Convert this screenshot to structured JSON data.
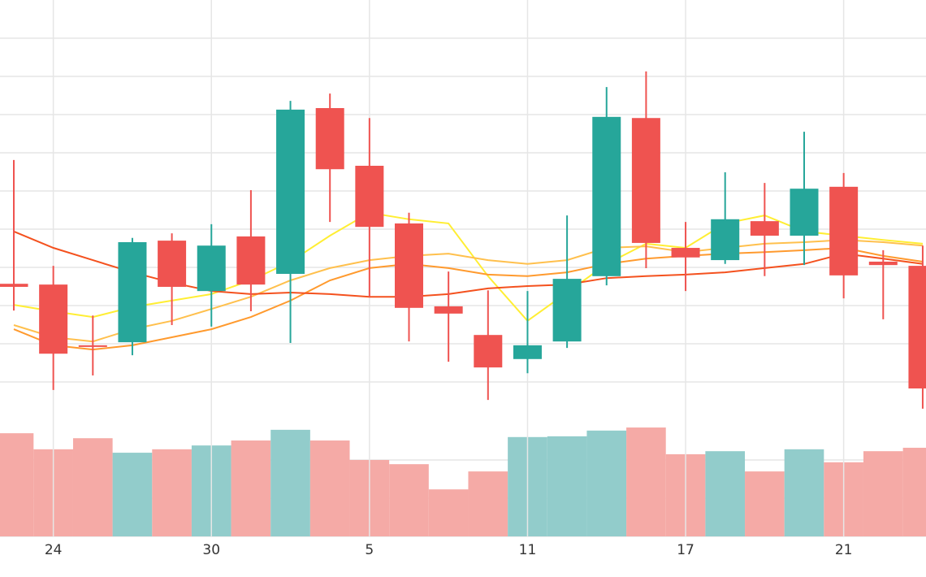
{
  "chart_data": {
    "type": "candlestick",
    "categories": [
      null,
      "24",
      null,
      null,
      null,
      "30",
      null,
      null,
      null,
      "5",
      null,
      null,
      null,
      "11",
      null,
      null,
      null,
      "17",
      null,
      null,
      null,
      "21",
      null,
      null
    ],
    "open": [
      35.7,
      35.5,
      19.6,
      20.4,
      47.0,
      33.8,
      48.1,
      38.3,
      81.7,
      66.6,
      51.5,
      29.8,
      22.3,
      16.0,
      20.6,
      37.7,
      79.1,
      45.1,
      41.9,
      52.1,
      48.3,
      61.1,
      41.5,
      40.4
    ],
    "high": [
      68.1,
      40.4,
      27.4,
      47.7,
      48.9,
      51.3,
      60.2,
      83.6,
      85.5,
      79.1,
      54.3,
      38.9,
      34.0,
      33.8,
      53.6,
      87.2,
      91.3,
      51.9,
      64.9,
      62.1,
      75.5,
      64.7,
      44.5,
      45.7
    ],
    "low": [
      28.7,
      7.9,
      11.7,
      17.0,
      24.9,
      24.5,
      28.5,
      20.2,
      51.9,
      32.3,
      20.6,
      15.3,
      5.3,
      12.3,
      18.9,
      35.3,
      39.8,
      33.8,
      40.9,
      37.7,
      40.6,
      31.9,
      26.4,
      3.0
    ],
    "close": [
      34.9,
      17.4,
      19.4,
      46.6,
      34.9,
      45.7,
      35.5,
      81.3,
      65.7,
      50.6,
      29.4,
      27.9,
      13.8,
      19.6,
      37.0,
      79.4,
      46.4,
      42.6,
      52.6,
      48.3,
      60.6,
      37.9,
      40.6,
      8.3
    ],
    "up_color": "#26a69a",
    "down_color": "#ef5350",
    "volume": [
      27.0,
      22.8,
      25.7,
      21.9,
      22.8,
      23.8,
      25.1,
      27.9,
      25.1,
      20.0,
      18.9,
      12.3,
      17.0,
      26.0,
      26.2,
      27.7,
      28.5,
      21.5,
      22.3,
      17.0,
      22.8,
      19.4,
      22.3,
      23.2
    ],
    "volume_up_color": "#92cccb",
    "volume_down_color": "#f5aaa6",
    "series": [
      {
        "color": "#ffee33",
        "values": [
          30.2,
          28.5,
          27.0,
          29.6,
          31.3,
          33.0,
          36.6,
          41.5,
          48.3,
          54.3,
          52.6,
          51.5,
          37.7,
          26.0,
          33.4,
          40.9,
          46.2,
          45.1,
          51.5,
          53.6,
          49.4,
          48.3,
          47.2,
          46.2
        ]
      },
      {
        "color": "#ffc04d",
        "values": [
          24.9,
          21.7,
          20.6,
          23.8,
          26.0,
          29.1,
          32.3,
          36.6,
          39.8,
          41.9,
          43.0,
          43.6,
          41.9,
          40.9,
          41.9,
          45.1,
          45.5,
          44.0,
          45.1,
          46.2,
          46.6,
          47.2,
          46.6,
          45.7
        ]
      },
      {
        "color": "#ff9a2e",
        "values": [
          23.8,
          19.6,
          18.5,
          19.6,
          21.7,
          23.8,
          27.0,
          31.3,
          36.6,
          39.8,
          40.9,
          39.8,
          38.1,
          37.7,
          38.7,
          40.9,
          42.3,
          43.0,
          43.6,
          44.0,
          44.5,
          45.1,
          43.0,
          41.5
        ]
      },
      {
        "color": "#f4511e",
        "values": [
          49.4,
          45.1,
          41.9,
          38.7,
          36.0,
          33.8,
          33.0,
          33.4,
          33.0,
          32.3,
          32.3,
          33.0,
          34.5,
          35.1,
          35.5,
          37.2,
          37.7,
          38.1,
          38.7,
          39.8,
          40.9,
          43.6,
          42.3,
          40.9
        ]
      }
    ],
    "ylim": [
      0,
      110
    ],
    "yticks": [
      10,
      20,
      30,
      40,
      50,
      60,
      70,
      80,
      90,
      100
    ],
    "volume_lim": [
      0,
      30
    ],
    "volume_ticks": [
      0,
      10,
      20
    ],
    "grid": true
  }
}
